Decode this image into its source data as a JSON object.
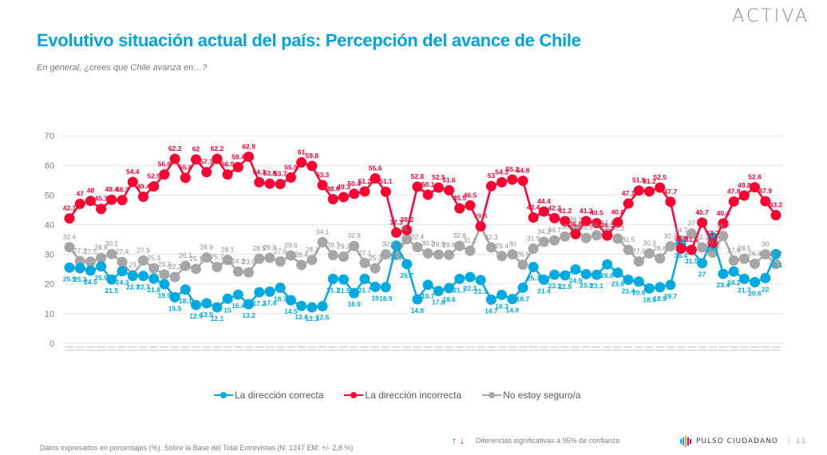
{
  "header": {
    "logo": "ACTIVA",
    "title": "Evolutivo situación actual del país: Percepción del avance de Chile",
    "subtitle": "En general,  ¿crees que Chile avanza en…?"
  },
  "chart_data": {
    "type": "line",
    "title": "Evolutivo situación actual del país: Percepción del avance de Chile",
    "xlabel": "",
    "ylabel": "",
    "ylim": [
      0,
      70
    ],
    "yticks": [
      0,
      10,
      20,
      30,
      40,
      50,
      60,
      70
    ],
    "grid": true,
    "legend_position": "bottom",
    "x_count": 68,
    "series": [
      {
        "name": "La dirección correcta",
        "color": "#00a9e0",
        "values": [
          25.5,
          25.3,
          24.5,
          25.9,
          21.5,
          24.3,
          22.7,
          22.7,
          21.8,
          19.9,
          15.5,
          18.1,
          12.9,
          13.5,
          12.1,
          15,
          16.4,
          13.2,
          17.2,
          17.4,
          18.7,
          14.5,
          12.6,
          12.1,
          12.5,
          21.7,
          21.5,
          16.9,
          21.7,
          19,
          18.9,
          32.9,
          26.7,
          14.8,
          19.7,
          17.6,
          18.6,
          21.7,
          22.3,
          21.3,
          14.7,
          16.3,
          14.9,
          18.7,
          25.7,
          21.4,
          23.1,
          22.9,
          24.9,
          23.3,
          23.1,
          26.6,
          23.8,
          21.4,
          20.8,
          18.5,
          18.9,
          19.7,
          33.4,
          31.5,
          27,
          35.7,
          23.4,
          24.2,
          21.7,
          20.6,
          22,
          30.1
        ]
      },
      {
        "name": "La dirección incorrecta",
        "color": "#ff0033",
        "values": [
          42.1,
          47,
          48,
          45.3,
          48.4,
          48.3,
          54.4,
          49.4,
          52.9,
          56.9,
          62.2,
          55.8,
          62,
          57.7,
          62.2,
          56.9,
          59.4,
          62.9,
          54.3,
          53.8,
          53.7,
          55.9,
          61,
          59.8,
          53.3,
          48.6,
          49.3,
          50.4,
          51.2,
          55.6,
          51.1,
          37.3,
          38.2,
          52.8,
          50.1,
          52.5,
          51.6,
          45.5,
          46.5,
          39.4,
          53,
          54.3,
          55.2,
          54.8,
          42.4,
          44.4,
          42.2,
          41.2,
          36.8,
          41.2,
          40.5,
          36.3,
          40.8,
          47.1,
          51.5,
          51.2,
          52.5,
          47.7,
          31.9,
          31.5,
          40.7,
          33.7,
          40.4,
          47.8,
          49.8,
          52.6,
          47.9,
          43.2
        ]
      },
      {
        "name": "No estoy seguro/a",
        "color": "#a6a6a6",
        "values": [
          32.4,
          27.7,
          27.5,
          28.8,
          30.1,
          27.4,
          23,
          27.9,
          25.3,
          23.2,
          22.3,
          26.1,
          25.1,
          28.9,
          25.7,
          28.1,
          24.2,
          23.9,
          28.5,
          28.8,
          27.6,
          29.6,
          26.4,
          28.1,
          34.1,
          29.7,
          29.2,
          32.8,
          27.1,
          25.3,
          30,
          29.8,
          35.1,
          32.4,
          30.3,
          29.9,
          29.8,
          32.8,
          31.2,
          39.4,
          32.3,
          29.4,
          30,
          26.5,
          31.9,
          34.2,
          34.7,
          36,
          38.3,
          35.5,
          36.4,
          37.1,
          35.3,
          31.5,
          27.6,
          30.3,
          28.6,
          32.7,
          34.7,
          37,
          32.3,
          30.6,
          36.2,
          27.9,
          28.5,
          26.8,
          30,
          26.7
        ]
      }
    ]
  },
  "legend": {
    "items": [
      {
        "label": "La dirección correcta",
        "color": "#00a9e0"
      },
      {
        "label": "La dirección incorrecta",
        "color": "#ff0033"
      },
      {
        "label": "No estoy seguro/a",
        "color": "#a6a6a6"
      }
    ]
  },
  "footer": {
    "note": "Datos expresados en porcentajes (%). Sobre la Base del Total Entrevistas (N: 1247  EM: +/- 2,8 %)",
    "sig_up": "↑",
    "sig_down": "↓",
    "sig_text": "Diferencias  significativas a 95% de confianza",
    "brand": "PULSO CIUDADANO",
    "separator": "|",
    "page": "11"
  }
}
